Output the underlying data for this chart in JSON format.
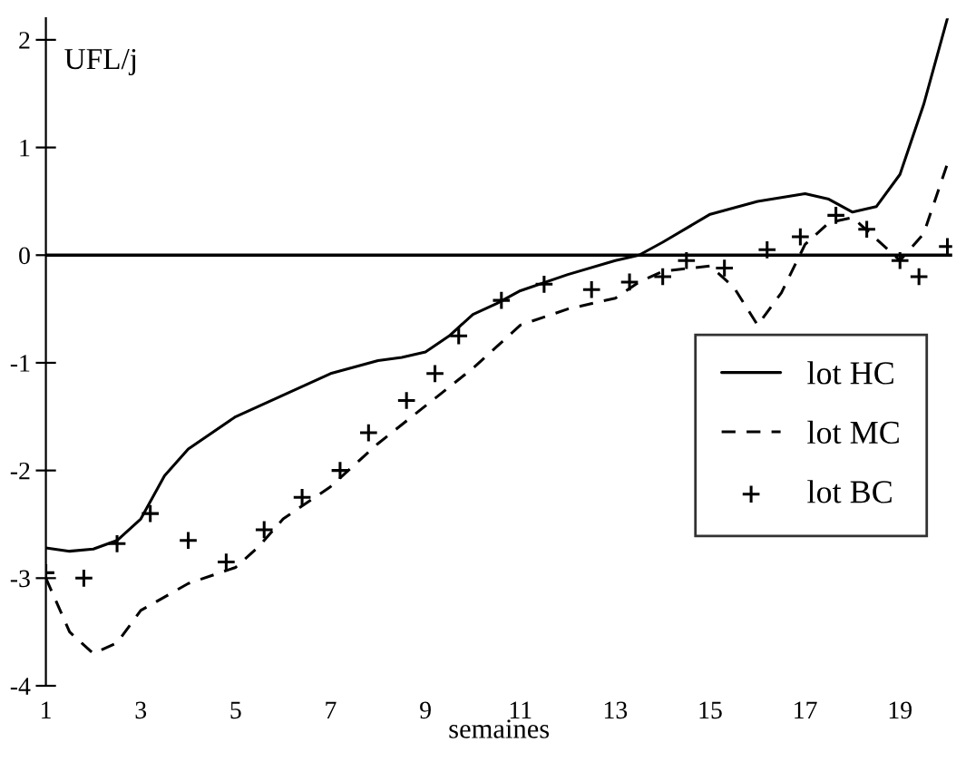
{
  "chart_data": {
    "type": "line",
    "xlabel": "semaines",
    "ylabel": "UFL/j",
    "xlim": [
      1,
      20.1
    ],
    "xticks": [
      1,
      3,
      5,
      7,
      9,
      11,
      13,
      15,
      17,
      19
    ],
    "ylim": [
      -4,
      2.2
    ],
    "yticks": [
      -4,
      -3,
      -2,
      -1,
      0,
      1,
      2
    ],
    "grid": false,
    "legend": "bottom right",
    "ref_lines": [
      {
        "axis": "y",
        "value": 0,
        "color": "#000000",
        "line_style": "solid"
      }
    ],
    "series": [
      {
        "name": "lot HC",
        "color": "#000000",
        "line_style": "solid",
        "marker": "none",
        "x": [
          1,
          1.5,
          2,
          2.5,
          3,
          3.5,
          4,
          5,
          6,
          7,
          8,
          8.5,
          9,
          9.5,
          10,
          10.5,
          11,
          12,
          13,
          13.5,
          14,
          15,
          16,
          17,
          17.5,
          18,
          18.5,
          19,
          19.5,
          20
        ],
        "values": [
          -2.72,
          -2.75,
          -2.73,
          -2.65,
          -2.45,
          -2.05,
          -1.8,
          -1.5,
          -1.3,
          -1.1,
          -0.98,
          -0.95,
          -0.9,
          -0.75,
          -0.55,
          -0.45,
          -0.33,
          -0.18,
          -0.05,
          0.0,
          0.12,
          0.38,
          0.5,
          0.57,
          0.52,
          0.4,
          0.45,
          0.75,
          1.4,
          2.2
        ]
      },
      {
        "name": "lot MC",
        "color": "#000000",
        "line_style": "dashed",
        "marker": "none",
        "x": [
          1,
          1.5,
          2,
          2.5,
          3,
          4,
          5,
          5.5,
          6,
          7,
          8,
          9,
          10,
          11,
          12,
          13,
          13.5,
          14,
          15,
          15.5,
          16,
          16.5,
          17,
          17.5,
          18,
          18.5,
          19,
          19.5,
          20
        ],
        "values": [
          -3.0,
          -3.5,
          -3.7,
          -3.6,
          -3.3,
          -3.05,
          -2.9,
          -2.7,
          -2.45,
          -2.15,
          -1.75,
          -1.4,
          -1.05,
          -0.65,
          -0.5,
          -0.4,
          -0.25,
          -0.15,
          -0.1,
          -0.3,
          -0.65,
          -0.35,
          0.1,
          0.3,
          0.35,
          0.15,
          -0.05,
          0.2,
          0.85
        ]
      },
      {
        "name": "lot BC",
        "color": "#000000",
        "type": "scatter",
        "marker": "cross",
        "x": [
          1,
          1.8,
          2.5,
          3.2,
          4,
          4.8,
          5.6,
          6.4,
          7.2,
          7.8,
          8.6,
          9.2,
          9.7,
          10.6,
          11.5,
          12.5,
          13.3,
          14.0,
          14.5,
          15.3,
          16.2,
          16.9,
          17.65,
          18.3,
          19,
          19.4,
          20
        ],
        "values": [
          -2.95,
          -3.0,
          -2.68,
          -2.4,
          -2.65,
          -2.85,
          -2.55,
          -2.25,
          -2.0,
          -1.65,
          -1.35,
          -1.1,
          -0.75,
          -0.42,
          -0.27,
          -0.32,
          -0.25,
          -0.2,
          -0.05,
          -0.12,
          0.05,
          0.17,
          0.37,
          0.24,
          -0.05,
          -0.2,
          0.08
        ]
      }
    ]
  }
}
